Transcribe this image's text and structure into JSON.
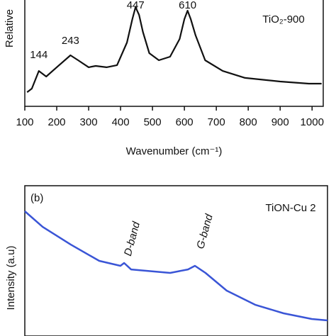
{
  "chart_data": [
    {
      "type": "line",
      "ylabel": "Relative",
      "xlabel": "Wavenumber (cm⁻¹)",
      "sample_label": "TiO₂-900",
      "annotations": [
        {
          "text": "144",
          "x": 144
        },
        {
          "text": "243",
          "x": 243
        },
        {
          "text": "447",
          "x": 447
        },
        {
          "text": "610",
          "x": 610
        }
      ],
      "xlim": [
        100,
        1035
      ],
      "ylim": [
        0,
        100
      ],
      "xticks": [
        100,
        200,
        300,
        400,
        500,
        600,
        700,
        800,
        900,
        1000
      ],
      "x": [
        107,
        122,
        144,
        167,
        200,
        243,
        267,
        300,
        322,
        356,
        389,
        420,
        437,
        447,
        458,
        470,
        490,
        520,
        555,
        585,
        600,
        610,
        620,
        635,
        665,
        720,
        790,
        900,
        990,
        1030
      ],
      "series": [
        {
          "color": "#111111",
          "values": [
            13.3,
            16.7,
            33.3,
            28,
            36.7,
            48,
            43.3,
            36.7,
            38,
            36.7,
            38.7,
            60,
            82,
            93.3,
            86,
            70,
            50,
            43.3,
            46.7,
            63.3,
            82,
            90,
            82,
            66.7,
            43.3,
            33.3,
            26.7,
            23.3,
            21.3,
            21.3
          ]
        }
      ]
    },
    {
      "type": "line",
      "panel_label": "(b)",
      "ylabel": "Intensity (a.u)",
      "sample_label": "TiON-Cu 2",
      "annotations": [
        {
          "text": "D-band",
          "x": 35
        },
        {
          "text": "G-band",
          "x": 59
        }
      ],
      "xlim": [
        0,
        100
      ],
      "ylim": [
        0,
        100
      ],
      "x": [
        0,
        5.9,
        15.2,
        24.6,
        31.6,
        32.8,
        35.1,
        48,
        53.9,
        56.2,
        59.7,
        66.7,
        76.1,
        85.5,
        94.8,
        100
      ],
      "series": [
        {
          "color": "#3a55d6",
          "values": [
            83,
            72.6,
            60.8,
            50,
            46.7,
            48.6,
            44.3,
            42,
            44.3,
            46.7,
            42,
            30.2,
            20.8,
            15.1,
            11.3,
            10.4
          ]
        }
      ]
    }
  ]
}
